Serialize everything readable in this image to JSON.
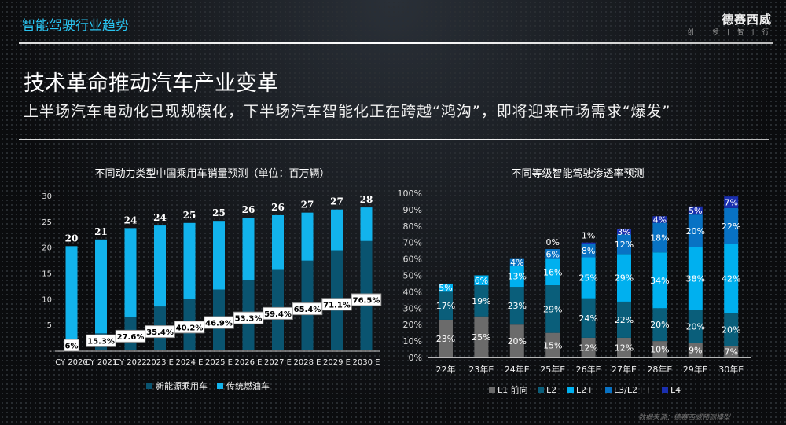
{
  "header": {
    "section": "智能驾驶行业趋势",
    "logo_name": "德赛西威",
    "logo_tagline": "创 | 领 | 智 | 行"
  },
  "title": "技术革命推动汽车产业变革",
  "subtitle": "上半场汽车电动化已现规模化，下半场汽车智能化正在跨越“鸿沟”，即将迎来市场需求“爆发”",
  "source": "数据来源：德赛西威预测模型",
  "colors": {
    "nev": "#0a5470",
    "ice": "#12b3ec",
    "L1": "#6b6b6b",
    "L2": "#0a5e7a",
    "L2p": "#00b0ef",
    "L3": "#0872c4",
    "L4": "#1a2fb0",
    "accent": "#29c4f0"
  },
  "chart_data": [
    {
      "type": "bar",
      "stacked": true,
      "title": "不同动力类型中国乘用车销量预测（单位：百万辆）",
      "categories": [
        "CY 2020",
        "CY 2021",
        "CY 2022",
        "2023 E",
        "2024 E",
        "2025 E",
        "2026 E",
        "2027 E",
        "2028 E",
        "2029 E",
        "2030 E"
      ],
      "yticks": [
        "-",
        "5",
        "10",
        "15",
        "20",
        "25",
        "30"
      ],
      "ylim": [
        0,
        30
      ],
      "series": [
        {
          "name": "新能源乘用车",
          "values": [
            1.2,
            3.3,
            6.5,
            8.5,
            9.9,
            11.8,
            13.7,
            15.6,
            17.4,
            19.4,
            21.2
          ]
        },
        {
          "name": "传统燃油车",
          "values": [
            19.0,
            18.2,
            17.2,
            15.7,
            14.8,
            13.3,
            12.0,
            10.6,
            9.3,
            7.9,
            6.5
          ]
        }
      ],
      "total_labels": [
        "20",
        "21",
        "24",
        "24",
        "25",
        "25",
        "26",
        "26",
        "27",
        "27",
        "28"
      ],
      "share_labels": [
        "6%",
        "15.3%",
        "27.6%",
        "35.4%",
        "40.2%",
        "46.9%",
        "53.3%",
        "59.4%",
        "65.4%",
        "71.1%",
        "76.5%"
      ],
      "legend": "bottom"
    },
    {
      "type": "bar",
      "stacked": true,
      "title": "不同等级智能驾驶渗透率预测",
      "categories": [
        "22年",
        "23年E",
        "24年E",
        "25年E",
        "26年E",
        "27年E",
        "28年E",
        "29年E",
        "30年E"
      ],
      "yticks": [
        "0%",
        "10%",
        "20%",
        "30%",
        "40%",
        "50%",
        "60%",
        "70%",
        "80%",
        "90%",
        "100%"
      ],
      "ylim": [
        0,
        100
      ],
      "series": [
        {
          "name": "L1 前向",
          "values": [
            23,
            25,
            20,
            15,
            12,
            12,
            10,
            9,
            7
          ]
        },
        {
          "name": "L2",
          "values": [
            17,
            19,
            23,
            29,
            24,
            22,
            20,
            20,
            20
          ]
        },
        {
          "name": "L2+",
          "values": [
            5,
            6,
            13,
            16,
            25,
            29,
            34,
            38,
            42
          ]
        },
        {
          "name": "L3/L2++",
          "values": [
            null,
            null,
            4,
            6,
            8,
            12,
            18,
            20,
            22
          ]
        },
        {
          "name": "L4",
          "values": [
            null,
            null,
            null,
            0,
            1,
            3,
            4,
            5,
            7
          ]
        }
      ],
      "legend": "bottom"
    }
  ]
}
